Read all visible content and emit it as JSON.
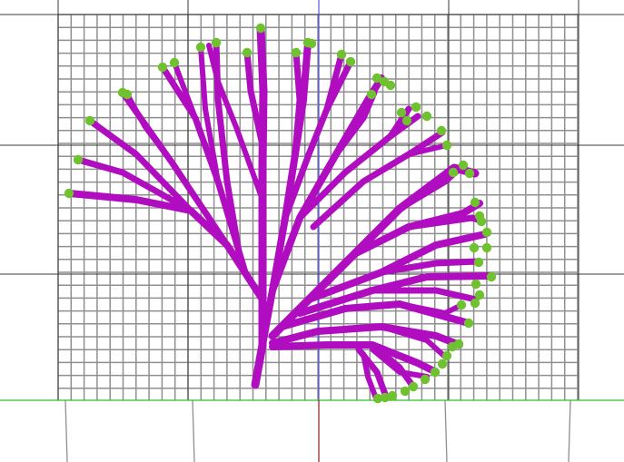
{
  "viewport": {
    "background": "#ffffff"
  },
  "scene": {
    "colors": {
      "fine_grid": "#8f8f8f",
      "coarse_grid": "#3a3a3a",
      "axis_x": "#2fbf2f",
      "axis_y": "#3a3ad8",
      "axis_z": "#8b1a1a",
      "branch": "#b00cc0",
      "leaf": "#6fc22f"
    },
    "grid_visible": true,
    "axes_visible": true,
    "object": "fractal-tree"
  }
}
